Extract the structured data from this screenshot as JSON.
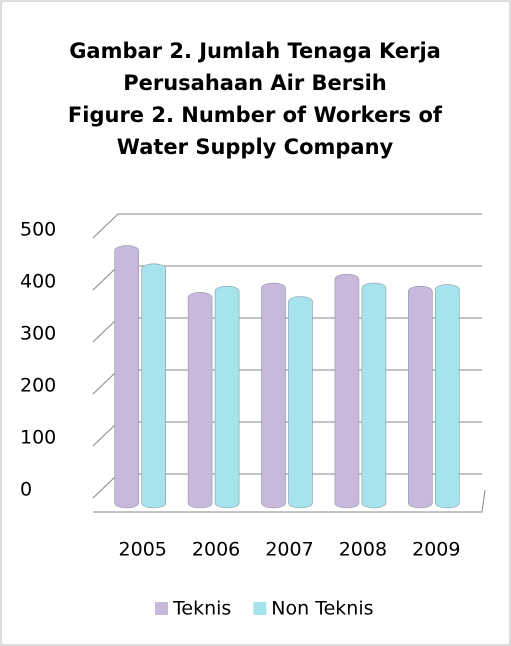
{
  "chart_data": {
    "type": "bar",
    "title": [
      "Gambar 2. Jumlah Tenaga Kerja",
      "Perusahaan Air Bersih",
      "Figure 2. Number of Workers of",
      "Water Supply Company"
    ],
    "categories": [
      "2005",
      "2006",
      "2007",
      "2008",
      "2009"
    ],
    "series": [
      {
        "name": "Teknis",
        "color": "#c8b8dc",
        "values": [
          470,
          380,
          398,
          415,
          392
        ]
      },
      {
        "name": "Non Teknis",
        "color": "#a6e3ec",
        "values": [
          435,
          392,
          372,
          398,
          395
        ]
      }
    ],
    "ylim": [
      0,
      500
    ],
    "yticks": [
      0,
      100,
      200,
      300,
      400,
      500
    ],
    "grid": true,
    "legend": "bottom"
  }
}
